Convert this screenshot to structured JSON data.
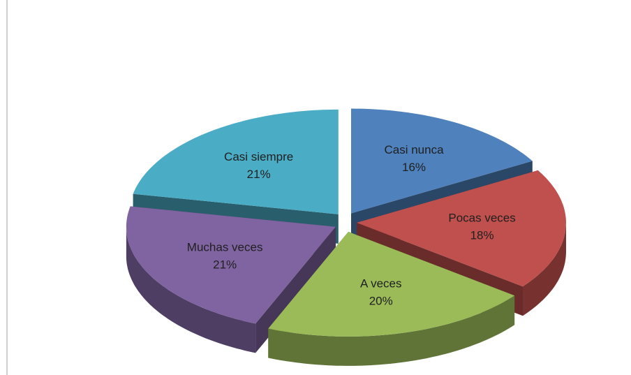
{
  "chart_data": {
    "type": "pie3d",
    "categories": [
      "Casi nunca",
      "Pocas veces",
      "A veces",
      "Muchas veces",
      "Casi siempre"
    ],
    "values": [
      16,
      18,
      20,
      21,
      21
    ],
    "value_labels": [
      "16%",
      "18%",
      "20%",
      "21%",
      "21%"
    ],
    "colors": [
      "#4f81bd",
      "#c0504d",
      "#9bbb59",
      "#8064a2",
      "#4bacc6"
    ]
  }
}
